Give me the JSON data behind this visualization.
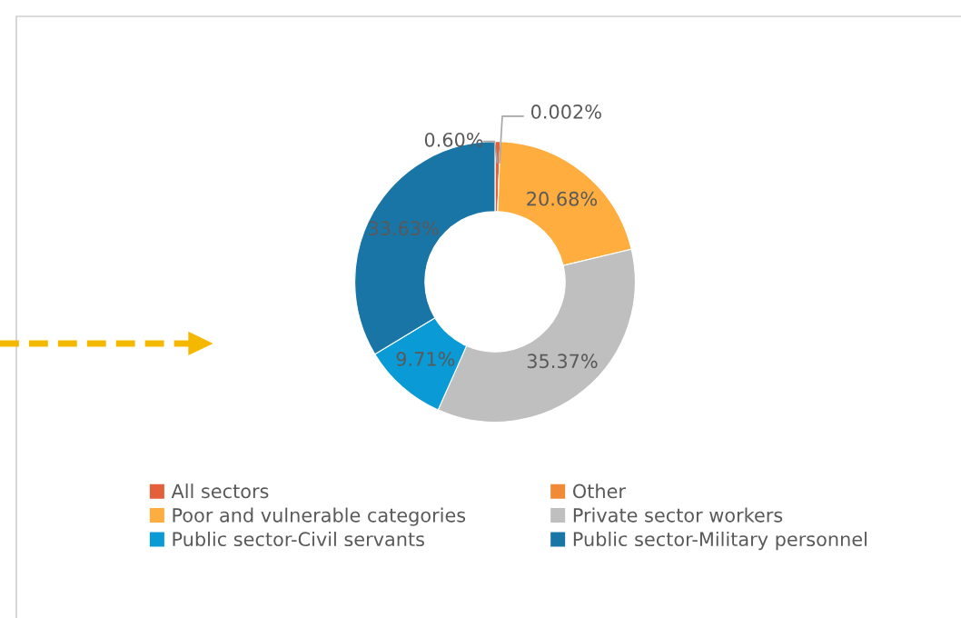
{
  "chart_data": {
    "type": "donut",
    "categories": [
      "All sectors",
      "Other",
      "Poor and vulnerable categories",
      "Private sector workers",
      "Public sector-Civil servants",
      "Public sector-Military personnel"
    ],
    "values": [
      0.6,
      0.002,
      20.68,
      35.37,
      9.71,
      33.63
    ],
    "value_labels": [
      "0.60%",
      "0.002%",
      "20.68%",
      "35.37%",
      "9.71%",
      "33.63%"
    ],
    "colors": [
      "#e4603a",
      "#f08a36",
      "#ffad3f",
      "#bfbfbf",
      "#0a9bd6",
      "#1a75a7"
    ],
    "legend": "bottom"
  }
}
